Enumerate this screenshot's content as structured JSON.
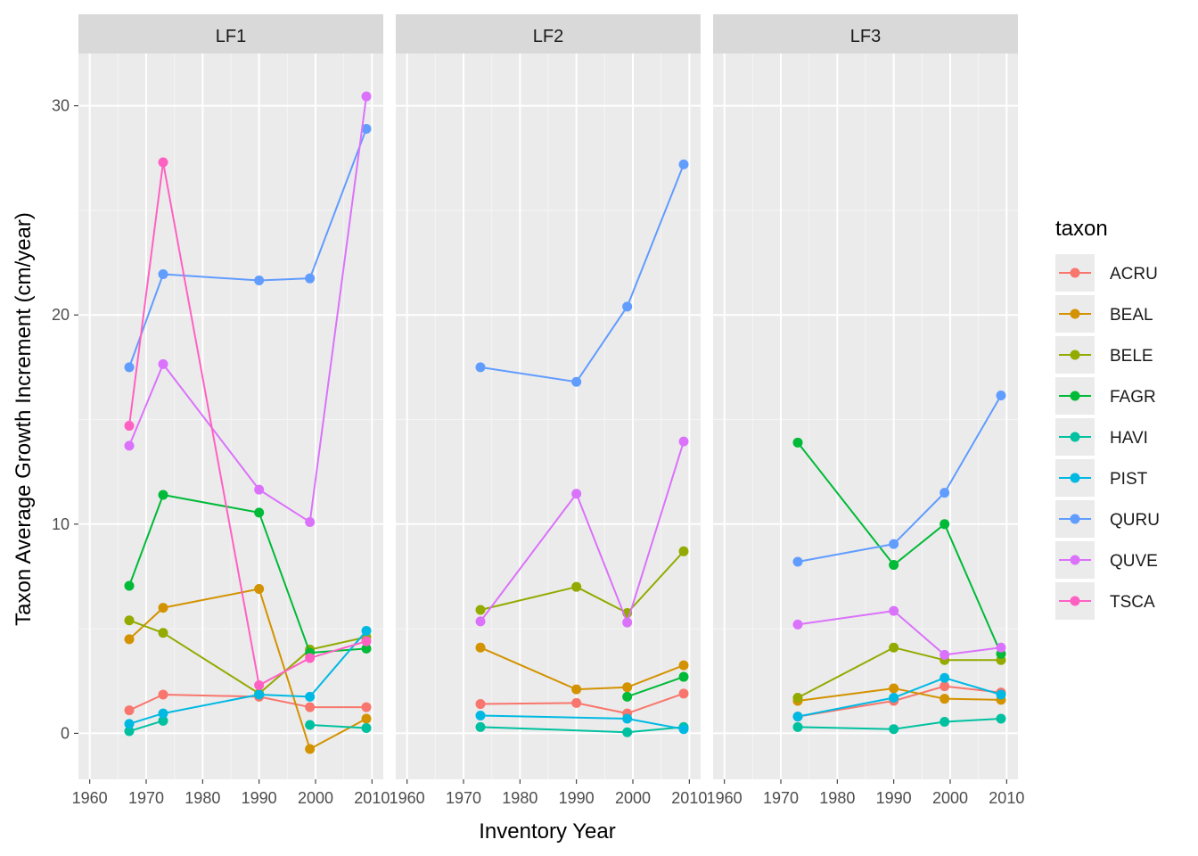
{
  "chart_data": {
    "type": "line",
    "xlabel": "Inventory Year",
    "ylabel": "Taxon Average Growth Increment (cm/year)",
    "xlim": [
      1958,
      2012
    ],
    "ylim": [
      -2.2,
      32.5
    ],
    "x_ticks": [
      1960,
      1970,
      1980,
      1990,
      2000,
      2010
    ],
    "x_tick_labels": [
      "1960",
      "1970",
      "1980",
      "1990",
      "2000",
      "2010"
    ],
    "y_ticks": [
      0,
      10,
      20,
      30
    ],
    "y_tick_labels": [
      "0",
      "10",
      "20",
      "30"
    ],
    "grid": true,
    "legend": {
      "title": "taxon",
      "placement": "right",
      "entries": [
        "ACRU",
        "BEAL",
        "BELE",
        "FAGR",
        "HAVI",
        "PIST",
        "QURU",
        "QUVE",
        "TSCA"
      ]
    },
    "colors": {
      "ACRU": "#F8766D",
      "BEAL": "#D39200",
      "BELE": "#93AA00",
      "FAGR": "#00BA38",
      "HAVI": "#00C19F",
      "PIST": "#00B9E3",
      "QURU": "#619CFF",
      "QUVE": "#DB72FB",
      "TSCA": "#FF61C3"
    },
    "panels": [
      {
        "label": "LF1",
        "series": [
          {
            "name": "ACRU",
            "points": [
              [
                1967,
                1.1
              ],
              [
                1973,
                1.85
              ],
              [
                1990,
                1.75
              ],
              [
                1999,
                1.25
              ],
              [
                2009,
                1.25
              ]
            ]
          },
          {
            "name": "BEAL",
            "points": [
              [
                1967,
                4.5
              ],
              [
                1973,
                6.0
              ],
              [
                1990,
                6.9
              ],
              [
                1999,
                -0.75
              ],
              [
                2009,
                0.7
              ]
            ]
          },
          {
            "name": "BELE",
            "points": [
              [
                1967,
                5.4
              ],
              [
                1973,
                4.8
              ],
              [
                1990,
                1.9
              ],
              [
                1999,
                4.0
              ],
              [
                2009,
                4.6
              ]
            ]
          },
          {
            "name": "FAGR",
            "points": [
              [
                1967,
                7.05
              ],
              [
                1973,
                11.4
              ],
              [
                1990,
                10.55
              ],
              [
                1999,
                3.85
              ],
              [
                2009,
                4.05
              ]
            ]
          },
          {
            "name": "HAVI",
            "points": [
              [
                1967,
                0.1
              ],
              [
                1973,
                0.6
              ],
              [
                1990,
                null
              ],
              [
                1999,
                0.4
              ],
              [
                2009,
                0.25
              ]
            ]
          },
          {
            "name": "PIST",
            "points": [
              [
                1967,
                0.45
              ],
              [
                1973,
                0.95
              ],
              [
                1990,
                1.85
              ],
              [
                1999,
                1.75
              ],
              [
                2009,
                4.9
              ]
            ]
          },
          {
            "name": "QURU",
            "points": [
              [
                1967,
                17.5
              ],
              [
                1973,
                21.95
              ],
              [
                1990,
                21.65
              ],
              [
                1999,
                21.75
              ],
              [
                2009,
                28.9
              ]
            ]
          },
          {
            "name": "QUVE",
            "points": [
              [
                1967,
                13.75
              ],
              [
                1973,
                17.65
              ],
              [
                1990,
                11.65
              ],
              [
                1999,
                10.1
              ],
              [
                2009,
                30.45
              ]
            ]
          },
          {
            "name": "TSCA",
            "points": [
              [
                1967,
                14.7
              ],
              [
                1973,
                27.3
              ],
              [
                1990,
                2.3
              ],
              [
                1999,
                3.6
              ],
              [
                2009,
                4.4
              ]
            ]
          }
        ]
      },
      {
        "label": "LF2",
        "series": [
          {
            "name": "ACRU",
            "points": [
              [
                1973,
                1.4
              ],
              [
                1990,
                1.45
              ],
              [
                1999,
                0.95
              ],
              [
                2009,
                1.9
              ]
            ]
          },
          {
            "name": "BEAL",
            "points": [
              [
                1973,
                4.1
              ],
              [
                1990,
                2.1
              ],
              [
                1999,
                2.2
              ],
              [
                2009,
                3.25
              ]
            ]
          },
          {
            "name": "BELE",
            "points": [
              [
                1973,
                5.9
              ],
              [
                1990,
                7.0
              ],
              [
                1999,
                5.75
              ],
              [
                2009,
                8.7
              ]
            ]
          },
          {
            "name": "FAGR",
            "points": [
              [
                1999,
                1.75
              ],
              [
                2009,
                2.7
              ]
            ]
          },
          {
            "name": "HAVI",
            "points": [
              [
                1973,
                0.3
              ],
              [
                1999,
                0.05
              ],
              [
                2009,
                0.3
              ]
            ]
          },
          {
            "name": "PIST",
            "points": [
              [
                1973,
                0.85
              ],
              [
                1999,
                0.7
              ],
              [
                2009,
                0.2
              ]
            ]
          },
          {
            "name": "QURU",
            "points": [
              [
                1973,
                17.5
              ],
              [
                1990,
                16.8
              ],
              [
                1999,
                20.4
              ],
              [
                2009,
                27.2
              ]
            ]
          },
          {
            "name": "QUVE",
            "points": [
              [
                1973,
                5.35
              ],
              [
                1990,
                11.45
              ],
              [
                1999,
                5.3
              ],
              [
                2009,
                13.95
              ]
            ]
          }
        ]
      },
      {
        "label": "LF3",
        "series": [
          {
            "name": "ACRU",
            "points": [
              [
                1973,
                0.8
              ],
              [
                1990,
                1.55
              ],
              [
                1999,
                2.25
              ],
              [
                2009,
                1.95
              ]
            ]
          },
          {
            "name": "BEAL",
            "points": [
              [
                1973,
                1.55
              ],
              [
                1990,
                2.15
              ],
              [
                1999,
                1.65
              ],
              [
                2009,
                1.6
              ]
            ]
          },
          {
            "name": "BELE",
            "points": [
              [
                1973,
                1.7
              ],
              [
                1990,
                4.1
              ],
              [
                1999,
                3.5
              ],
              [
                2009,
                3.5
              ]
            ]
          },
          {
            "name": "FAGR",
            "points": [
              [
                1973,
                13.9
              ],
              [
                1990,
                8.05
              ],
              [
                1999,
                10.0
              ],
              [
                2009,
                3.8
              ]
            ]
          },
          {
            "name": "HAVI",
            "points": [
              [
                1973,
                0.3
              ],
              [
                1990,
                0.2
              ],
              [
                1999,
                0.55
              ],
              [
                2009,
                0.7
              ]
            ]
          },
          {
            "name": "PIST",
            "points": [
              [
                1973,
                0.8
              ],
              [
                1990,
                1.7
              ],
              [
                1999,
                2.65
              ],
              [
                2009,
                1.85
              ]
            ]
          },
          {
            "name": "QURU",
            "points": [
              [
                1973,
                8.2
              ],
              [
                1990,
                9.05
              ],
              [
                1999,
                11.5
              ],
              [
                2009,
                16.15
              ]
            ]
          },
          {
            "name": "QUVE",
            "points": [
              [
                1973,
                5.2
              ],
              [
                1990,
                5.85
              ],
              [
                1999,
                3.75
              ],
              [
                2009,
                4.1
              ]
            ]
          }
        ]
      }
    ]
  }
}
